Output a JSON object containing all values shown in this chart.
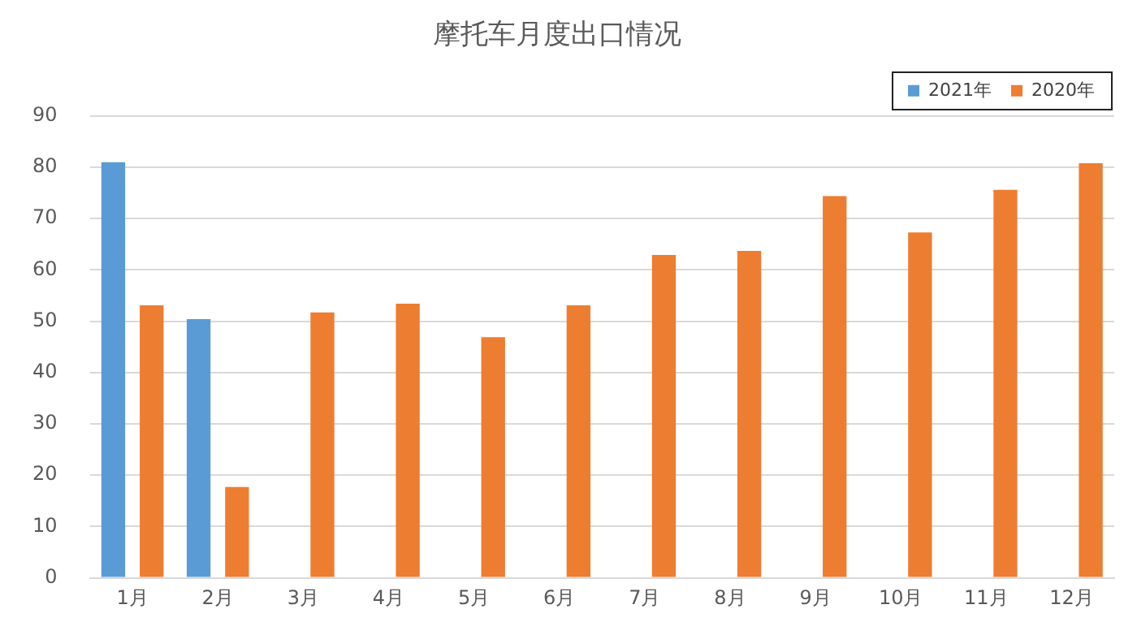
{
  "chart_data": {
    "type": "bar",
    "title": "摩托车月度出口情况",
    "categories": [
      "1月",
      "2月",
      "3月",
      "4月",
      "5月",
      "6月",
      "7月",
      "8月",
      "9月",
      "10月",
      "11月",
      "12月"
    ],
    "series": [
      {
        "name": "2021年",
        "color": "#5b9bd5",
        "values": [
          81,
          50.4,
          null,
          null,
          null,
          null,
          null,
          null,
          null,
          null,
          null,
          null
        ]
      },
      {
        "name": "2020年",
        "color": "#ed7d31",
        "values": [
          53.1,
          17.7,
          51.7,
          53.4,
          46.9,
          53.1,
          62.9,
          63.7,
          74.4,
          67.3,
          75.6,
          80.8
        ]
      }
    ],
    "ylim": [
      0,
      90
    ],
    "yticks": [
      0,
      10,
      20,
      30,
      40,
      50,
      60,
      70,
      80,
      90
    ],
    "grid": "y",
    "legend": "top right"
  }
}
